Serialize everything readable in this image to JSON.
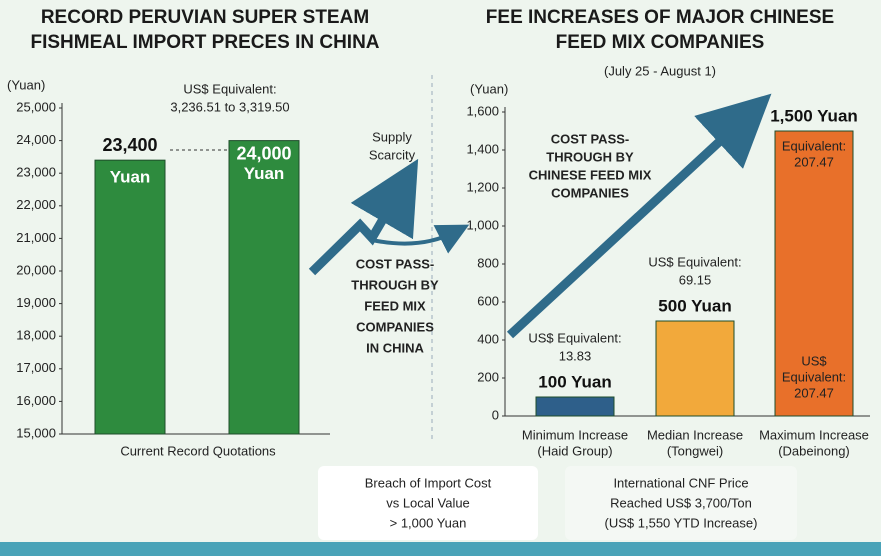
{
  "chart_data": [
    {
      "type": "bar",
      "title": [
        "RECORD PERUVIAN SUPER STEAM",
        "FISHMEAL IMPORT PRECES IN CHINA"
      ],
      "y_label": "(Yuan)",
      "x_label": "Current Record Quotations",
      "categories": [
        null,
        null
      ],
      "values": [
        23400,
        24000
      ],
      "value_labels": [
        "23,400",
        "24,000"
      ],
      "unit_labels": [
        "Yuan",
        "Yuan"
      ],
      "color": "#2e8b3e",
      "ylim": [
        15000,
        25000
      ],
      "yticks": [
        {
          "value": 15000,
          "label": "15,000"
        },
        {
          "value": 16000,
          "label": "16,000"
        },
        {
          "value": 17000,
          "label": "17,000"
        },
        {
          "value": 18000,
          "label": "18,000"
        },
        {
          "value": 19000,
          "label": "19,000"
        },
        {
          "value": 20000,
          "label": "20,000"
        },
        {
          "value": 21000,
          "label": "21,000"
        },
        {
          "value": 22000,
          "label": "22,000"
        },
        {
          "value": 23000,
          "label": "23,000"
        },
        {
          "value": 24000,
          "label": "24,000"
        },
        {
          "value": 25000,
          "label": "25,000"
        }
      ],
      "annotation": [
        "US$ Equivalent:",
        "3,236.51 to 3,319.50"
      ],
      "arrow_label": [
        "Supply",
        "Scarcity"
      ]
    },
    {
      "type": "bar",
      "title": [
        "FEE INCREASES OF MAJOR CHINESE",
        "FEED MIX COMPANIES"
      ],
      "subtitle": "(July 25 - August 1)",
      "y_label": "(Yuan)",
      "categories": [
        "Minimum Increase",
        "Median Increase",
        "Maximum Increase"
      ],
      "category_notes": [
        "(Haid Group)",
        "(Tongwei)",
        "(Dabeinong)"
      ],
      "values": [
        100,
        500,
        1500
      ],
      "value_labels": [
        "100 Yuan",
        "500 Yuan",
        "1,500 Yuan"
      ],
      "colors": [
        "#2e5f8a",
        "#f2a93b",
        "#e8702a"
      ],
      "ylim": [
        0,
        1600
      ],
      "yticks": [
        0,
        200,
        400,
        600,
        800,
        {
          "value": 1000,
          "label": "1,000"
        },
        {
          "value": 1200,
          "label": "1,200"
        },
        {
          "value": 1400,
          "label": "1,400"
        },
        {
          "value": 1600,
          "label": "1,600"
        }
      ],
      "notes": [
        [
          "US$ Equivalent:",
          "13.83"
        ],
        [
          "US$ Equivalent:",
          "69.15"
        ],
        [
          "Equivalent:",
          "207.47"
        ]
      ],
      "bottom_note": [
        "US$",
        "Equivalent:",
        "207.47"
      ],
      "arrow_label": [
        "COST PASS-",
        "THROUGH BY",
        "CHINESE FEED MIX",
        "COMPANIES"
      ]
    }
  ],
  "middle_label": [
    "COST PASS-",
    "THROUGH BY",
    "FEED MIX",
    "COMPANIES",
    "IN CHINA"
  ],
  "footer": {
    "left": [
      "Breach of Import Cost",
      "vs Local Value",
      "> 1,000 Yuan"
    ],
    "right": [
      "International CNF Price",
      "Reached US$ 3,700/Ton",
      "(US$ 1,550 YTD Increase)"
    ]
  }
}
